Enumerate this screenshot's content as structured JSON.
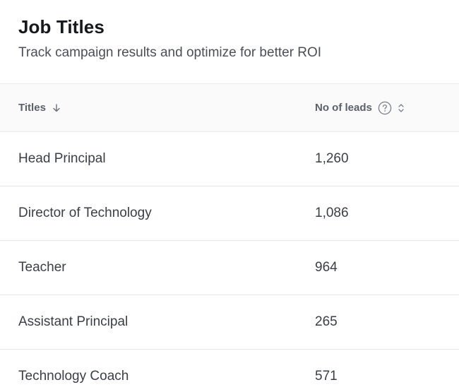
{
  "header": {
    "title": "Job Titles",
    "subtitle": "Track campaign results and optimize for better ROI"
  },
  "table": {
    "columns": [
      {
        "label": "Titles",
        "icon": "arrow-down-icon"
      },
      {
        "label": "No of leads",
        "icons": [
          "help-circle-icon",
          "sort-icon"
        ]
      }
    ],
    "rows": [
      {
        "title": "Head Principal",
        "leads": "1,260"
      },
      {
        "title": "Director of Technology",
        "leads": "1,086"
      },
      {
        "title": "Teacher",
        "leads": "964"
      },
      {
        "title": "Assistant Principal",
        "leads": "265"
      },
      {
        "title": "Technology Coach",
        "leads": "571"
      }
    ]
  },
  "colors": {
    "header_bg": "#fafafa",
    "border": "#e6e6e6",
    "text_primary": "#161a1f",
    "text_secondary": "#4a5059"
  }
}
